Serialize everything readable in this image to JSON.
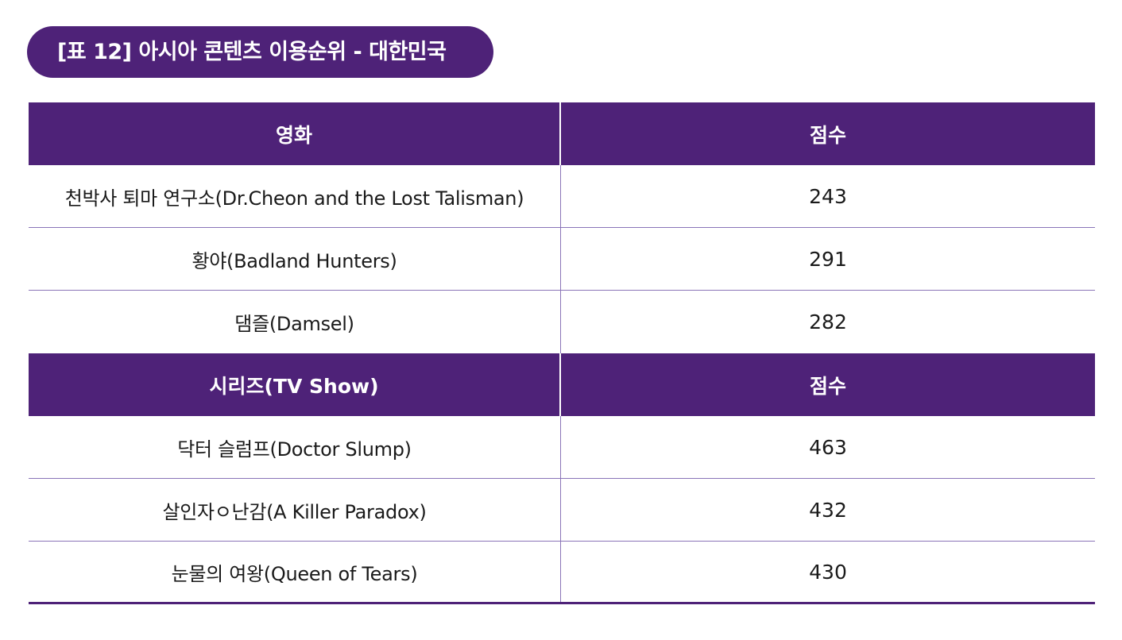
{
  "title": "[표 12] 아시아 콘텐츠 이용순위 - 대한민국",
  "colors": {
    "header_bg": "#4e2278",
    "header_text": "#ffffff",
    "divider": "#8a74b8"
  },
  "sections": [
    {
      "header": {
        "col1": "영화",
        "col2": "점수"
      },
      "rows": [
        {
          "title": "천박사 퇴마 연구소(Dr.Cheon and the Lost Talisman)",
          "score": "243"
        },
        {
          "title": "황야(Badland Hunters)",
          "score": "291"
        },
        {
          "title": "댐즐(Damsel)",
          "score": "282"
        }
      ]
    },
    {
      "header": {
        "col1": "시리즈(TV Show)",
        "col2": "점수"
      },
      "rows": [
        {
          "title": "닥터 슬럼프(Doctor Slump)",
          "score": "463"
        },
        {
          "title": "살인자ㅇ난감(A Killer Paradox)",
          "score": "432"
        },
        {
          "title": "눈물의 여왕(Queen of Tears)",
          "score": "430"
        }
      ]
    }
  ]
}
